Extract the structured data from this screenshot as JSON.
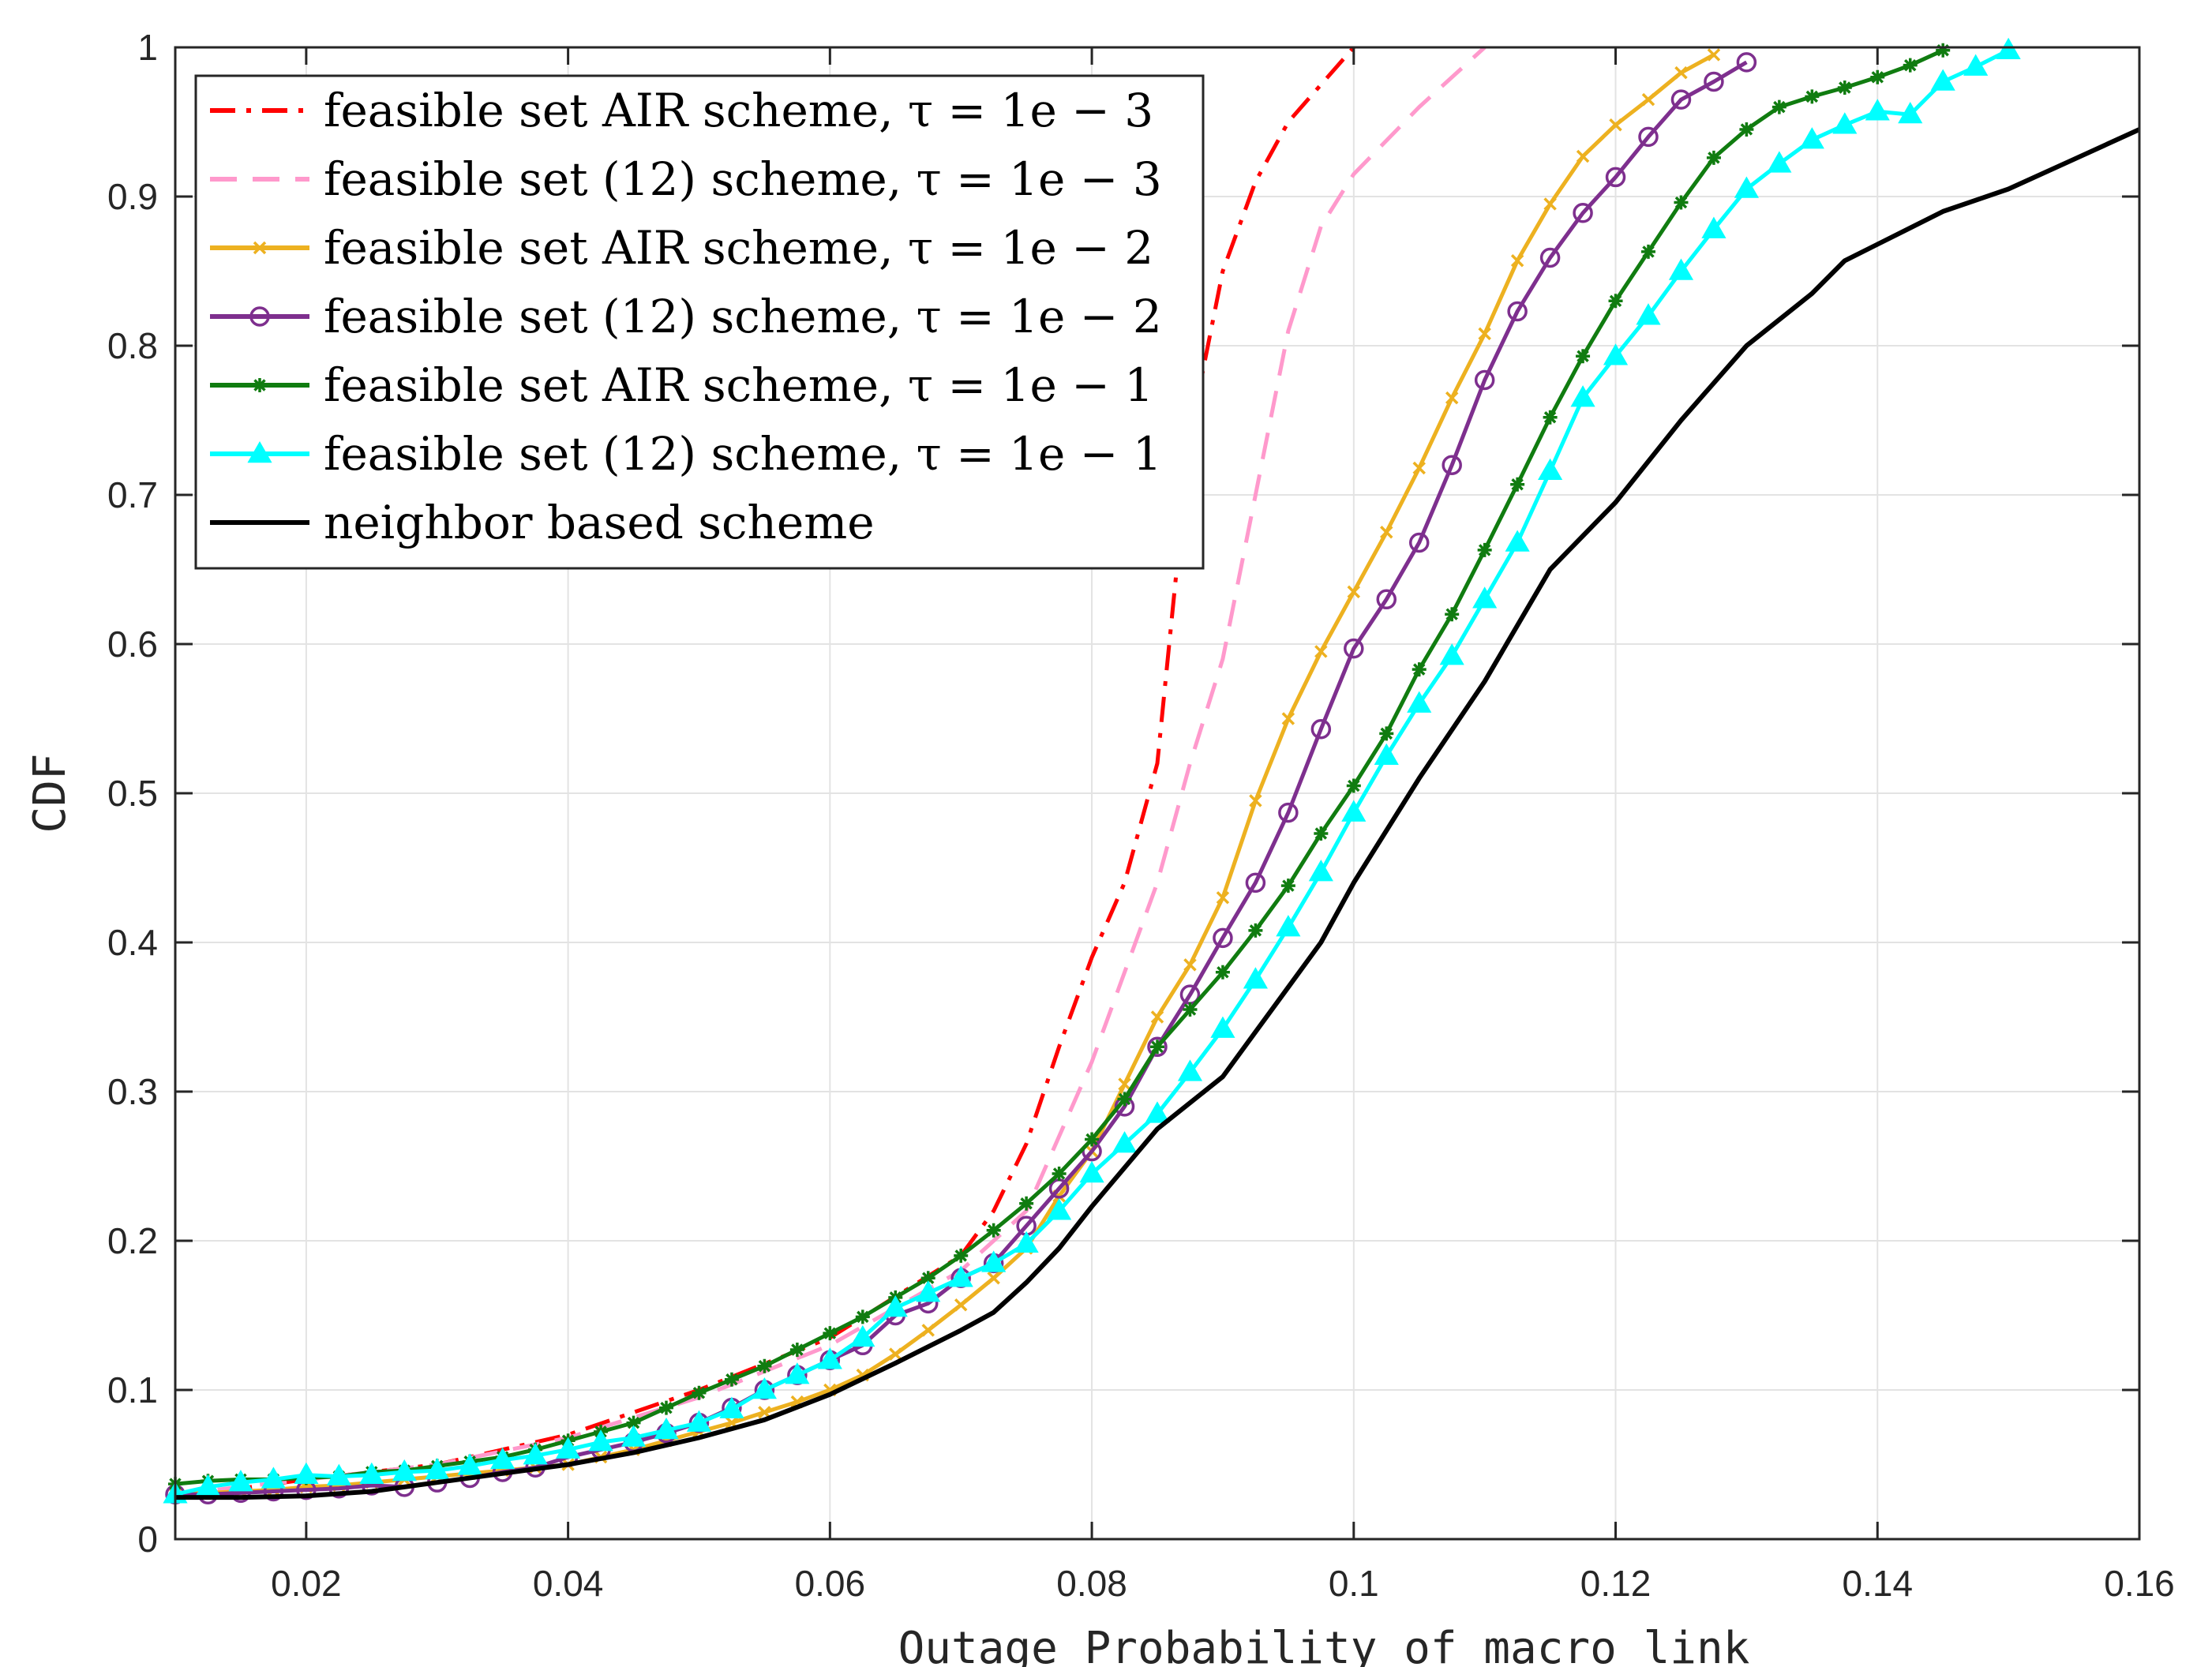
{
  "chart_data": {
    "type": "line",
    "xlabel": "Outage Probability of macro link",
    "ylabel": "CDF",
    "xlim": [
      0.01,
      0.16
    ],
    "ylim": [
      0,
      1
    ],
    "xticks": [
      0.02,
      0.04,
      0.06,
      0.08,
      0.1,
      0.12,
      0.14,
      0.16
    ],
    "xtick_labels": [
      "0.02",
      "0.04",
      "0.06",
      "0.08",
      "0.1",
      "0.12",
      "0.14",
      "0.16"
    ],
    "yticks": [
      0,
      0.1,
      0.2,
      0.3,
      0.4,
      0.5,
      0.6,
      0.7,
      0.8,
      0.9,
      1
    ],
    "ytick_labels": [
      "0",
      "0.1",
      "0.2",
      "0.3",
      "0.4",
      "0.5",
      "0.6",
      "0.7",
      "0.8",
      "0.9",
      "1"
    ],
    "grid": true,
    "legend_position": "top-left",
    "series": [
      {
        "name": "feasible set AIR scheme, τ = 1e − 3",
        "color": "#ff0000",
        "style": "dashdot",
        "marker": "none",
        "x": [
          0.01,
          0.02,
          0.03,
          0.035,
          0.04,
          0.05,
          0.06,
          0.07,
          0.0725,
          0.075,
          0.0775,
          0.08,
          0.0825,
          0.085,
          0.0875,
          0.09,
          0.0925,
          0.095,
          0.0975,
          0.1
        ],
        "y": [
          0.028,
          0.04,
          0.05,
          0.06,
          0.07,
          0.1,
          0.135,
          0.19,
          0.22,
          0.265,
          0.33,
          0.39,
          0.44,
          0.52,
          0.74,
          0.85,
          0.91,
          0.95,
          0.975,
          1.0
        ]
      },
      {
        "name": "feasible set (12) scheme, τ = 1e − 3",
        "color": "#ff99cc",
        "style": "dashed",
        "marker": "none",
        "x": [
          0.01,
          0.02,
          0.03,
          0.04,
          0.05,
          0.06,
          0.07,
          0.075,
          0.08,
          0.085,
          0.0875,
          0.09,
          0.0925,
          0.095,
          0.0975,
          0.1,
          0.105,
          0.11
        ],
        "y": [
          0.03,
          0.04,
          0.05,
          0.068,
          0.095,
          0.13,
          0.18,
          0.22,
          0.32,
          0.44,
          0.52,
          0.59,
          0.7,
          0.81,
          0.88,
          0.915,
          0.96,
          1.0
        ]
      },
      {
        "name": "feasible set AIR scheme, τ = 1e − 2",
        "color": "#edb120",
        "style": "solid",
        "marker": "x",
        "x": [
          0.01,
          0.0125,
          0.015,
          0.0175,
          0.02,
          0.0225,
          0.025,
          0.0275,
          0.03,
          0.0325,
          0.035,
          0.0375,
          0.04,
          0.0425,
          0.045,
          0.0475,
          0.05,
          0.0525,
          0.055,
          0.0575,
          0.06,
          0.0625,
          0.065,
          0.0675,
          0.07,
          0.0725,
          0.075,
          0.0775,
          0.08,
          0.0825,
          0.085,
          0.0875,
          0.09,
          0.0925,
          0.095,
          0.0975,
          0.1,
          0.1025,
          0.105,
          0.1075,
          0.11,
          0.1125,
          0.115,
          0.1175,
          0.12,
          0.1225,
          0.125,
          0.1275
        ],
        "y": [
          0.03,
          0.031,
          0.032,
          0.033,
          0.035,
          0.036,
          0.038,
          0.04,
          0.042,
          0.044,
          0.046,
          0.048,
          0.05,
          0.055,
          0.06,
          0.066,
          0.072,
          0.078,
          0.085,
          0.092,
          0.1,
          0.11,
          0.124,
          0.14,
          0.157,
          0.175,
          0.195,
          0.23,
          0.26,
          0.305,
          0.35,
          0.385,
          0.43,
          0.495,
          0.55,
          0.595,
          0.635,
          0.675,
          0.718,
          0.765,
          0.808,
          0.857,
          0.895,
          0.927,
          0.948,
          0.965,
          0.983,
          0.995
        ]
      },
      {
        "name": "feasible set (12) scheme, τ = 1e − 2",
        "color": "#7e2f8e",
        "style": "solid",
        "marker": "o",
        "x": [
          0.01,
          0.0125,
          0.015,
          0.0175,
          0.02,
          0.0225,
          0.025,
          0.0275,
          0.03,
          0.0325,
          0.035,
          0.0375,
          0.04,
          0.0425,
          0.045,
          0.0475,
          0.05,
          0.0525,
          0.055,
          0.0575,
          0.06,
          0.0625,
          0.065,
          0.0675,
          0.07,
          0.0725,
          0.075,
          0.0775,
          0.08,
          0.0825,
          0.085,
          0.0875,
          0.09,
          0.0925,
          0.095,
          0.0975,
          0.1,
          0.1025,
          0.105,
          0.1075,
          0.11,
          0.1125,
          0.115,
          0.1175,
          0.12,
          0.1225,
          0.125,
          0.1275,
          0.13
        ],
        "y": [
          0.03,
          0.03,
          0.031,
          0.032,
          0.033,
          0.034,
          0.036,
          0.035,
          0.038,
          0.041,
          0.045,
          0.048,
          0.055,
          0.06,
          0.065,
          0.071,
          0.078,
          0.088,
          0.1,
          0.11,
          0.12,
          0.13,
          0.15,
          0.158,
          0.175,
          0.185,
          0.21,
          0.235,
          0.26,
          0.29,
          0.33,
          0.365,
          0.403,
          0.44,
          0.487,
          0.543,
          0.597,
          0.63,
          0.668,
          0.72,
          0.777,
          0.823,
          0.859,
          0.889,
          0.913,
          0.94,
          0.965,
          0.977,
          0.99
        ]
      },
      {
        "name": "feasible set AIR scheme, τ = 1e − 1",
        "color": "#107c10",
        "style": "solid",
        "marker": "asterisk",
        "x": [
          0.01,
          0.0125,
          0.015,
          0.0175,
          0.02,
          0.0225,
          0.025,
          0.0275,
          0.03,
          0.0325,
          0.035,
          0.0375,
          0.04,
          0.0425,
          0.045,
          0.0475,
          0.05,
          0.0525,
          0.055,
          0.0575,
          0.06,
          0.0625,
          0.065,
          0.0675,
          0.07,
          0.0725,
          0.075,
          0.0775,
          0.08,
          0.0825,
          0.085,
          0.0875,
          0.09,
          0.0925,
          0.095,
          0.0975,
          0.1,
          0.1025,
          0.105,
          0.1075,
          0.11,
          0.1125,
          0.115,
          0.1175,
          0.12,
          0.1225,
          0.125,
          0.1275,
          0.13,
          0.1325,
          0.135,
          0.1375,
          0.14,
          0.1425,
          0.145
        ],
        "y": [
          0.037,
          0.039,
          0.04,
          0.04,
          0.041,
          0.042,
          0.045,
          0.046,
          0.049,
          0.052,
          0.055,
          0.06,
          0.066,
          0.072,
          0.078,
          0.088,
          0.098,
          0.107,
          0.116,
          0.127,
          0.138,
          0.149,
          0.162,
          0.175,
          0.19,
          0.207,
          0.225,
          0.245,
          0.268,
          0.295,
          0.33,
          0.355,
          0.38,
          0.408,
          0.438,
          0.473,
          0.505,
          0.54,
          0.583,
          0.62,
          0.663,
          0.707,
          0.752,
          0.793,
          0.83,
          0.863,
          0.896,
          0.926,
          0.945,
          0.96,
          0.967,
          0.973,
          0.98,
          0.988,
          0.998
        ]
      },
      {
        "name": "feasible set (12) scheme, τ = 1e − 1",
        "color": "#00ffff",
        "style": "solid",
        "marker": "triangle",
        "x": [
          0.01,
          0.0125,
          0.015,
          0.0175,
          0.02,
          0.0225,
          0.025,
          0.0275,
          0.03,
          0.0325,
          0.035,
          0.0375,
          0.04,
          0.0425,
          0.045,
          0.0475,
          0.05,
          0.0525,
          0.055,
          0.0575,
          0.06,
          0.0625,
          0.065,
          0.0675,
          0.07,
          0.0725,
          0.075,
          0.0775,
          0.08,
          0.0825,
          0.085,
          0.0875,
          0.09,
          0.0925,
          0.095,
          0.0975,
          0.1,
          0.1025,
          0.105,
          0.1075,
          0.11,
          0.1125,
          0.115,
          0.1175,
          0.12,
          0.1225,
          0.125,
          0.1275,
          0.13,
          0.1325,
          0.135,
          0.1375,
          0.14,
          0.1425,
          0.145,
          0.1475,
          0.15
        ],
        "y": [
          0.03,
          0.035,
          0.038,
          0.04,
          0.043,
          0.042,
          0.043,
          0.045,
          0.046,
          0.049,
          0.053,
          0.056,
          0.06,
          0.065,
          0.068,
          0.073,
          0.078,
          0.087,
          0.1,
          0.11,
          0.12,
          0.135,
          0.155,
          0.165,
          0.175,
          0.185,
          0.198,
          0.22,
          0.245,
          0.265,
          0.285,
          0.313,
          0.342,
          0.375,
          0.41,
          0.447,
          0.487,
          0.525,
          0.56,
          0.592,
          0.63,
          0.668,
          0.716,
          0.765,
          0.793,
          0.82,
          0.85,
          0.878,
          0.905,
          0.922,
          0.938,
          0.948,
          0.957,
          0.955,
          0.977,
          0.987,
          0.998
        ]
      },
      {
        "name": "neighbor based scheme",
        "color": "#000000",
        "style": "solid",
        "marker": "none",
        "x": [
          0.01,
          0.015,
          0.02,
          0.025,
          0.03,
          0.035,
          0.04,
          0.045,
          0.05,
          0.055,
          0.06,
          0.065,
          0.07,
          0.0725,
          0.075,
          0.0775,
          0.08,
          0.085,
          0.09,
          0.0925,
          0.095,
          0.0975,
          0.1,
          0.105,
          0.11,
          0.115,
          0.12,
          0.125,
          0.13,
          0.135,
          0.1375,
          0.14,
          0.145,
          0.15,
          0.155,
          0.16
        ],
        "y": [
          0.028,
          0.028,
          0.029,
          0.032,
          0.038,
          0.044,
          0.05,
          0.058,
          0.068,
          0.08,
          0.097,
          0.118,
          0.14,
          0.152,
          0.172,
          0.195,
          0.223,
          0.275,
          0.31,
          0.34,
          0.37,
          0.4,
          0.44,
          0.51,
          0.575,
          0.65,
          0.695,
          0.75,
          0.8,
          0.835,
          0.857,
          0.868,
          0.89,
          0.905,
          0.925,
          0.945
        ]
      }
    ]
  }
}
